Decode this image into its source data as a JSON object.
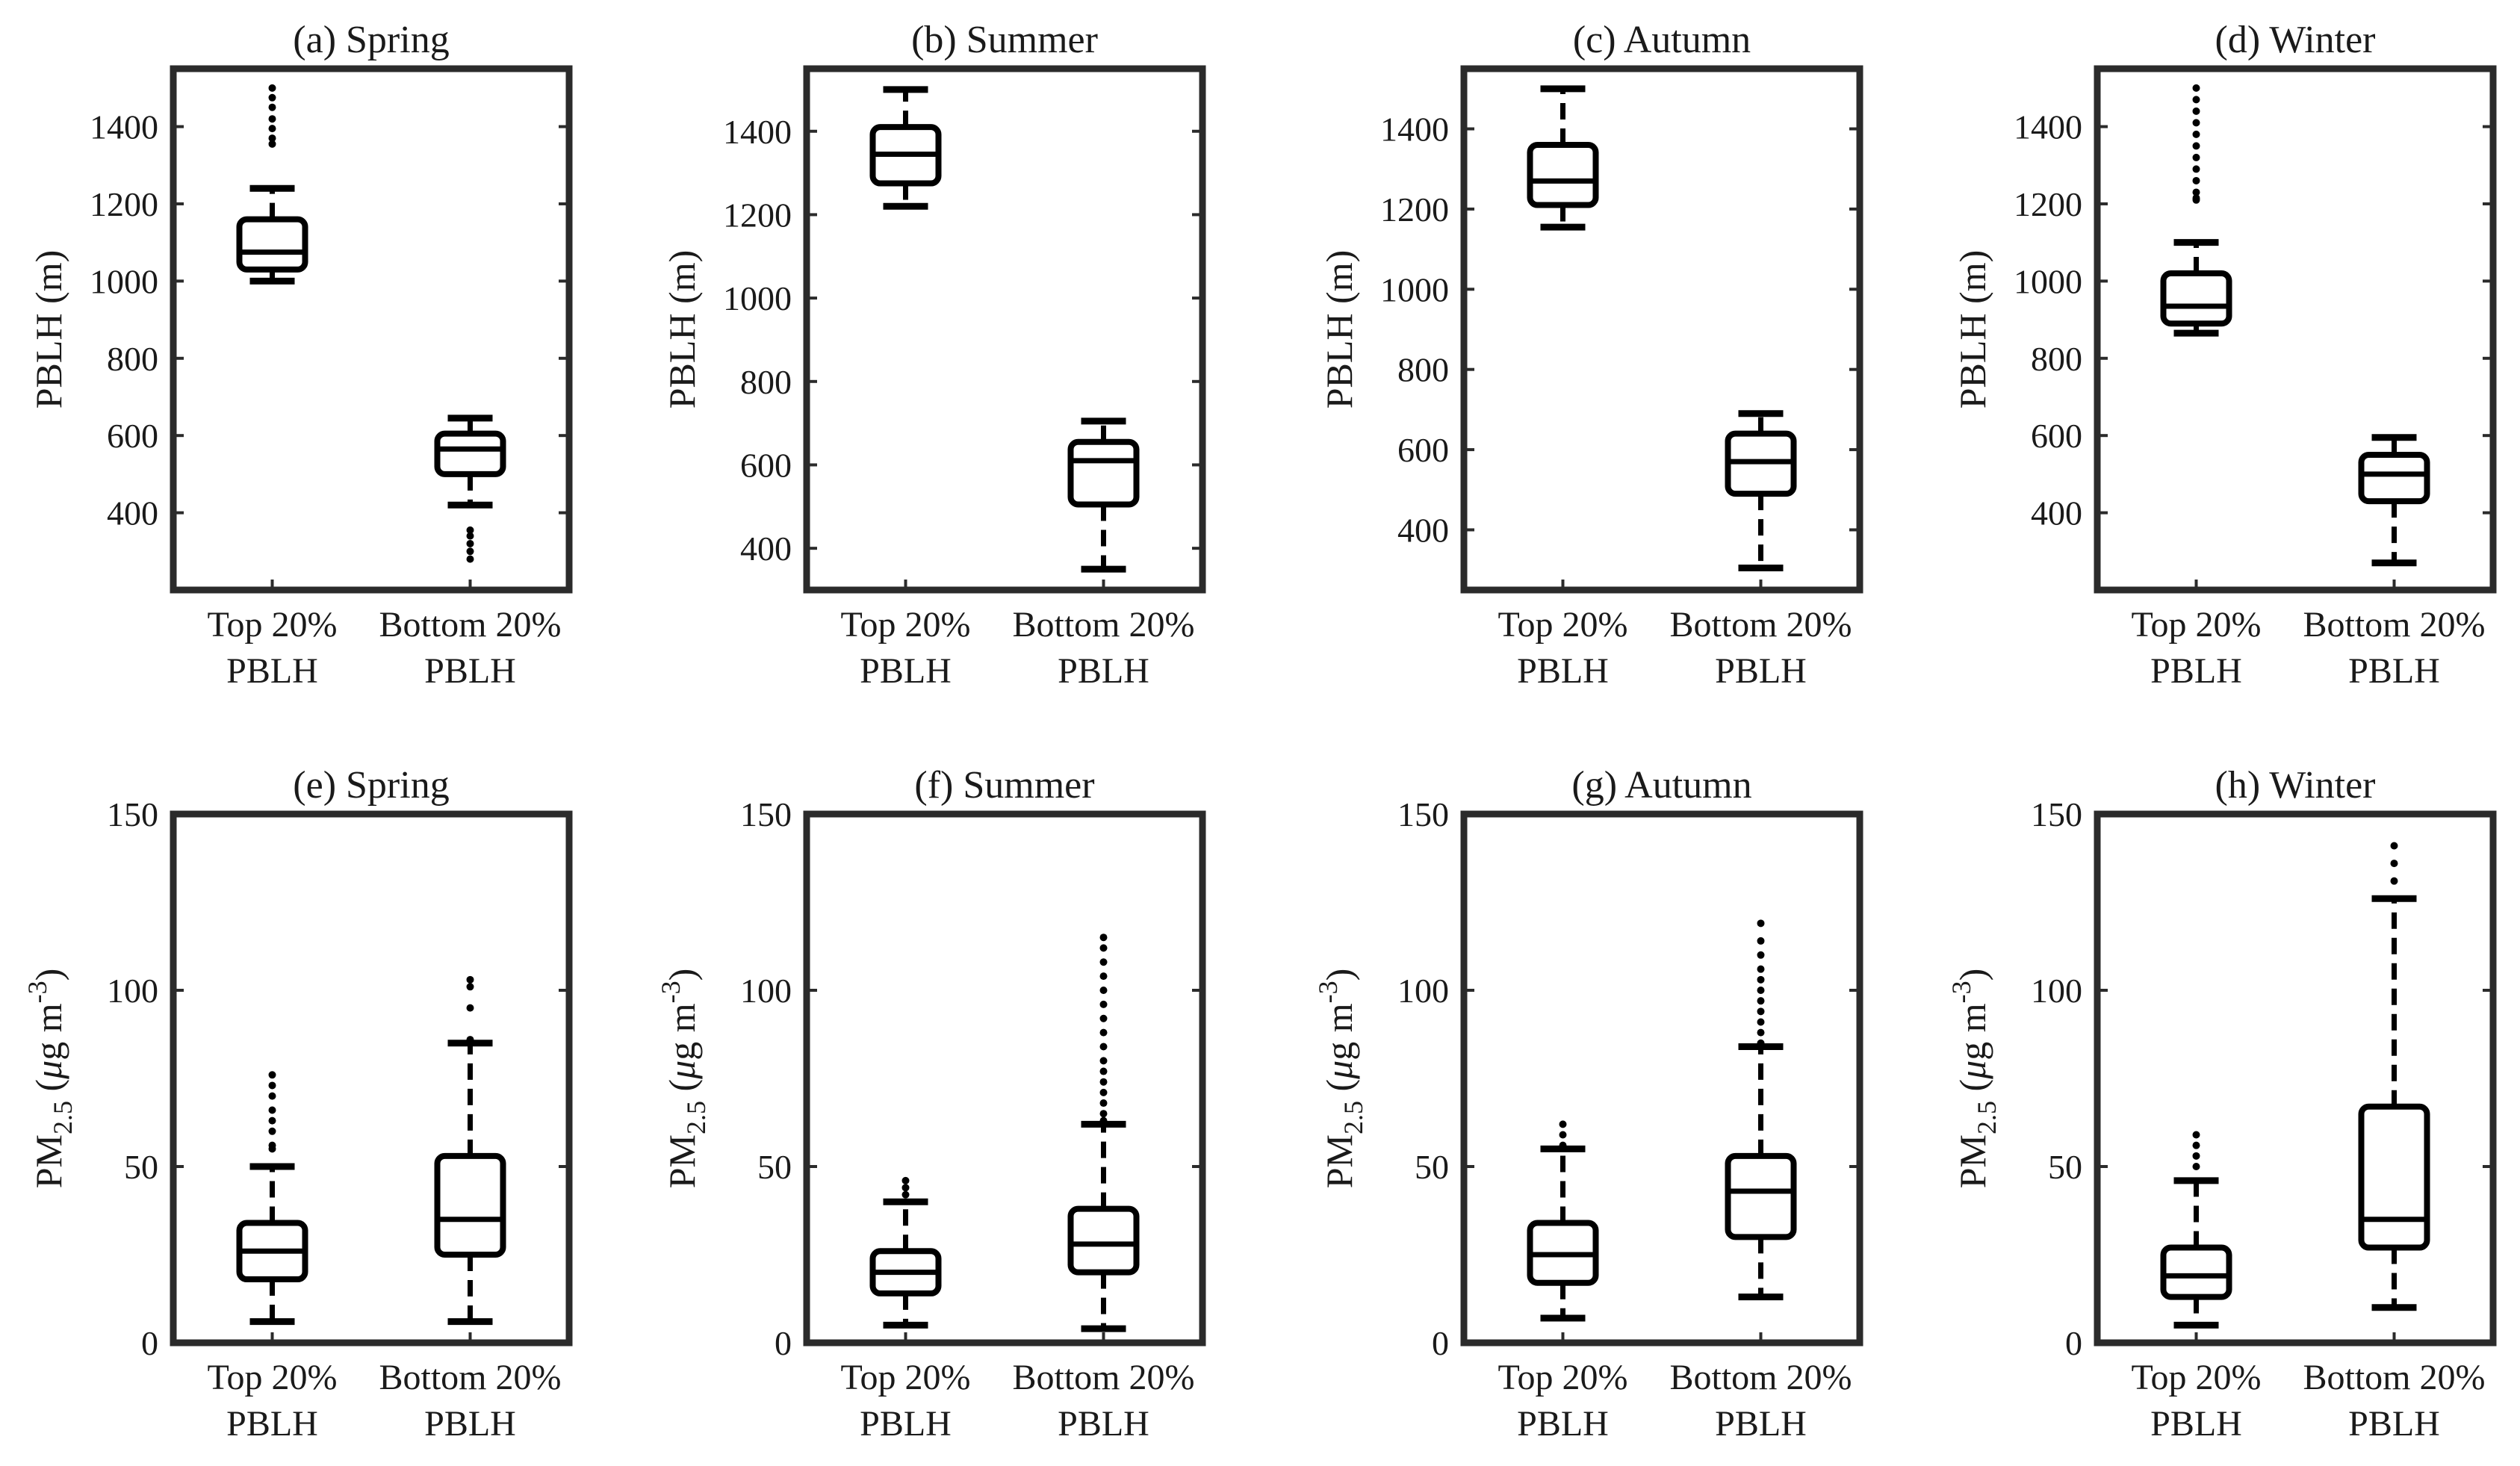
{
  "chart_data": [
    {
      "type": "box",
      "panel": "a",
      "title": "(a) Spring",
      "ylabel": "PBLH (m)",
      "ylim": [
        200,
        1550
      ],
      "yticks": [
        400,
        600,
        800,
        1000,
        1200,
        1400
      ],
      "categories": [
        [
          "Top 20%",
          "PBLH"
        ],
        [
          "Bottom 20%",
          "PBLH"
        ]
      ],
      "boxes": [
        {
          "whisker_low": 1000,
          "q1": 1030,
          "median": 1075,
          "q3": 1160,
          "whisker_high": 1240,
          "outliers": [
            1355,
            1370,
            1395,
            1420,
            1450,
            1475,
            1500
          ]
        },
        {
          "whisker_low": 420,
          "q1": 500,
          "median": 565,
          "q3": 605,
          "whisker_high": 645,
          "outliers": [
            340,
            355,
            320,
            300,
            280
          ]
        }
      ]
    },
    {
      "type": "box",
      "panel": "b",
      "title": "(b) Summer",
      "ylabel": "PBLH (m)",
      "ylim": [
        300,
        1550
      ],
      "yticks": [
        400,
        600,
        800,
        1000,
        1200,
        1400
      ],
      "categories": [
        [
          "Top 20%",
          "PBLH"
        ],
        [
          "Bottom 20%",
          "PBLH"
        ]
      ],
      "boxes": [
        {
          "whisker_low": 1220,
          "q1": 1275,
          "median": 1345,
          "q3": 1410,
          "whisker_high": 1500,
          "outliers": []
        },
        {
          "whisker_low": 350,
          "q1": 505,
          "median": 610,
          "q3": 655,
          "whisker_high": 705,
          "outliers": []
        }
      ]
    },
    {
      "type": "box",
      "panel": "c",
      "title": "(c) Autumn",
      "ylabel": "PBLH (m)",
      "ylim": [
        250,
        1550
      ],
      "yticks": [
        400,
        600,
        800,
        1000,
        1200,
        1400
      ],
      "categories": [
        [
          "Top 20%",
          "PBLH"
        ],
        [
          "Bottom 20%",
          "PBLH"
        ]
      ],
      "boxes": [
        {
          "whisker_low": 1155,
          "q1": 1210,
          "median": 1270,
          "q3": 1360,
          "whisker_high": 1500,
          "outliers": []
        },
        {
          "whisker_low": 305,
          "q1": 490,
          "median": 570,
          "q3": 640,
          "whisker_high": 690,
          "outliers": []
        }
      ]
    },
    {
      "type": "box",
      "panel": "d",
      "title": "(d) Winter",
      "ylabel": "PBLH (m)",
      "ylim": [
        200,
        1550
      ],
      "yticks": [
        400,
        600,
        800,
        1000,
        1200,
        1400
      ],
      "categories": [
        [
          "Top 20%",
          "PBLH"
        ],
        [
          "Bottom 20%",
          "PBLH"
        ]
      ],
      "boxes": [
        {
          "whisker_low": 865,
          "q1": 890,
          "median": 935,
          "q3": 1020,
          "whisker_high": 1100,
          "outliers": [
            1210,
            1215,
            1230,
            1260,
            1290,
            1320,
            1350,
            1380,
            1410,
            1440,
            1470,
            1500
          ]
        },
        {
          "whisker_low": 270,
          "q1": 430,
          "median": 500,
          "q3": 550,
          "whisker_high": 595,
          "outliers": []
        }
      ]
    },
    {
      "type": "box",
      "panel": "e",
      "title": "(e) Spring",
      "ylabel": "PM2.5 (μg m-3)",
      "ylim": [
        0,
        150
      ],
      "yticks": [
        0,
        50,
        100,
        150
      ],
      "categories": [
        [
          "Top 20%",
          "PBLH"
        ],
        [
          "Bottom 20%",
          "PBLH"
        ]
      ],
      "boxes": [
        {
          "whisker_low": 6,
          "q1": 18,
          "median": 26,
          "q3": 34,
          "whisker_high": 50,
          "outliers": [
            55,
            56,
            60,
            63,
            66,
            70,
            73,
            76
          ]
        },
        {
          "whisker_low": 6,
          "q1": 25,
          "median": 35,
          "q3": 53,
          "whisker_high": 85,
          "outliers": [
            86,
            95,
            101,
            103
          ]
        }
      ]
    },
    {
      "type": "box",
      "panel": "f",
      "title": "(f) Summer",
      "ylabel": "PM2.5 (μg m-3)",
      "ylim": [
        0,
        150
      ],
      "yticks": [
        0,
        50,
        100,
        150
      ],
      "categories": [
        [
          "Top 20%",
          "PBLH"
        ],
        [
          "Bottom 20%",
          "PBLH"
        ]
      ],
      "boxes": [
        {
          "whisker_low": 5,
          "q1": 14,
          "median": 20,
          "q3": 26,
          "whisker_high": 40,
          "outliers": [
            42,
            44,
            46
          ]
        },
        {
          "whisker_low": 4,
          "q1": 20,
          "median": 28,
          "q3": 38,
          "whisker_high": 62,
          "outliers": [
            63,
            65,
            68,
            71,
            74,
            77,
            80,
            84,
            88,
            92,
            96,
            100,
            104,
            108,
            112,
            115
          ]
        }
      ]
    },
    {
      "type": "box",
      "panel": "g",
      "title": "(g) Autumn",
      "ylabel": "PM2.5 (μg m-3)",
      "ylim": [
        0,
        150
      ],
      "yticks": [
        0,
        50,
        100,
        150
      ],
      "categories": [
        [
          "Top 20%",
          "PBLH"
        ],
        [
          "Bottom 20%",
          "PBLH"
        ]
      ],
      "boxes": [
        {
          "whisker_low": 7,
          "q1": 17,
          "median": 25,
          "q3": 34,
          "whisker_high": 55,
          "outliers": [
            56,
            59,
            62
          ]
        },
        {
          "whisker_low": 13,
          "q1": 30,
          "median": 43,
          "q3": 53,
          "whisker_high": 84,
          "outliers": [
            85,
            88,
            91,
            94,
            97,
            100,
            103,
            106,
            110,
            114,
            119
          ]
        }
      ]
    },
    {
      "type": "box",
      "panel": "h",
      "title": "(h) Winter",
      "ylabel": "PM2.5 (μg m-3)",
      "ylim": [
        0,
        150
      ],
      "yticks": [
        0,
        50,
        100,
        150
      ],
      "categories": [
        [
          "Top 20%",
          "PBLH"
        ],
        [
          "Bottom 20%",
          "PBLH"
        ]
      ],
      "boxes": [
        {
          "whisker_low": 5,
          "q1": 13,
          "median": 19,
          "q3": 27,
          "whisker_high": 46,
          "outliers": [
            50,
            53,
            56,
            59
          ]
        },
        {
          "whisker_low": 10,
          "q1": 27,
          "median": 35,
          "q3": 67,
          "whisker_high": 126,
          "outliers": [
            131,
            136,
            141
          ]
        }
      ]
    }
  ],
  "ylabel_pblh": "PBLH (m)",
  "ylabel_pm": {
    "base": "PM",
    "sub": "2.5",
    "mu": "μ",
    "unit": "g m",
    "sup": "-3"
  }
}
